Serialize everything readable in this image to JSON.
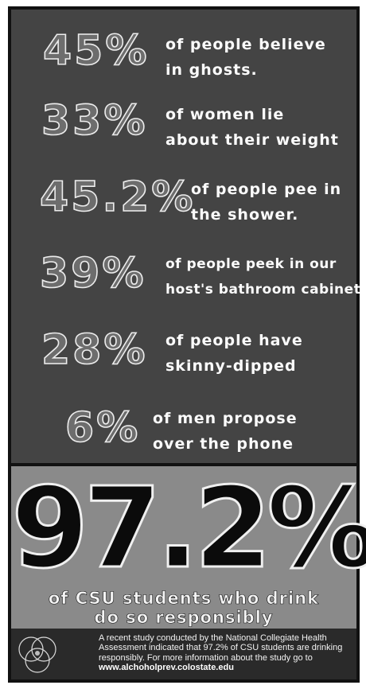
{
  "stats": [
    {
      "number": "45%",
      "line1": "of people believe",
      "line2": "in ghosts."
    },
    {
      "number": "33%",
      "line1": "of women lie",
      "line2": "about their weight"
    },
    {
      "number": "45.2%",
      "line1": "of people pee in",
      "line2": "the shower."
    },
    {
      "number": "39%",
      "line1": "of people peek in our",
      "line2": "host's bathroom cabinet"
    },
    {
      "number": "28%",
      "line1": "of people have",
      "line2": "skinny-dipped"
    },
    {
      "number": "6%",
      "line1": "of men propose",
      "line2": "over the phone"
    }
  ],
  "headline": {
    "number": "97.2%",
    "line1": "of CSU students who drink",
    "line2": "do so responsibly"
  },
  "footer": {
    "text": "A recent study conducted by the National Collegiate Health Assessment indicated that 97.2% of CSU students are drinking responsibly. For more information about the study go to",
    "url": "www.alchoholprev.colostate.edu",
    "logo_icon": "venn-diagram-logo-icon"
  }
}
